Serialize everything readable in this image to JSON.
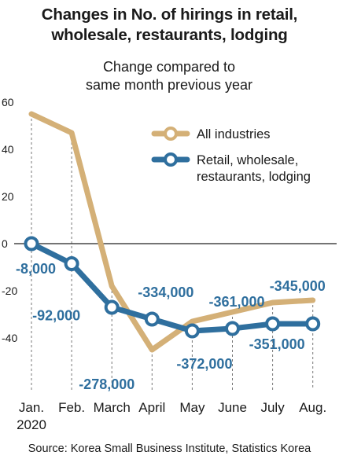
{
  "chart_data": {
    "type": "line",
    "title": "Changes in No. of hirings in retail, wholesale, restaurants, lodging",
    "title_lines": [
      "Changes in No. of hirings in retail,",
      "wholesale, restaurants, lodging"
    ],
    "subtitle_lines": [
      "Change compared to",
      "same month previous year"
    ],
    "categories": [
      "Jan.",
      "Feb.",
      "March",
      "April",
      "May",
      "June",
      "July",
      "Aug."
    ],
    "category_sublabels": [
      "2020",
      "",
      "",
      "",
      "",
      "",
      "",
      ""
    ],
    "y_ticks": [
      60,
      40,
      20,
      0,
      -20,
      -40
    ],
    "ylim": [
      -62,
      60
    ],
    "series": [
      {
        "name": "All industries",
        "color": "#d4b077",
        "values": [
          55,
          47,
          -18,
          -45,
          -33,
          -29,
          -25,
          -24
        ]
      },
      {
        "name": "Retail, wholesale, restaurants, lodging",
        "legend_lines": [
          "Retail, wholesale,",
          "restaurants, lodging"
        ],
        "color": "#2f6f9e",
        "values": [
          0,
          -8.5,
          -27,
          -32,
          -37,
          -36,
          -34,
          -34
        ],
        "data_labels": [
          "-8,000",
          "-92,000",
          "-278,000",
          "-334,000",
          "-372,000",
          "-361,000",
          "-351,000",
          "-345,000"
        ]
      }
    ],
    "grid": false,
    "legend_position": "top-right"
  },
  "source": "Source: Korea Small Business Institute, Statistics Korea"
}
